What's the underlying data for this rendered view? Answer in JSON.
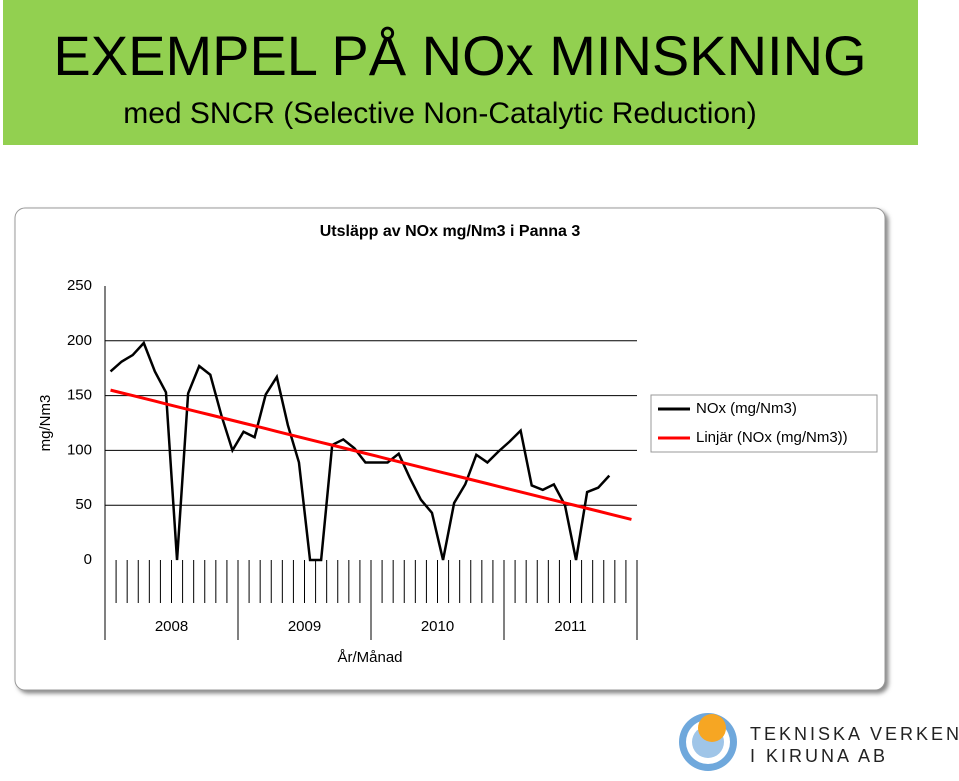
{
  "header": {
    "title": "EXEMPEL PÅ NOx MINSKNING",
    "subtitle": "med SNCR (Selective Non-Catalytic Reduction)"
  },
  "chart_data": {
    "type": "line",
    "title": "Utsläpp av NOx mg/Nm3 i Panna 3",
    "x_label": "År/Månad",
    "y_label": "mg/Nm3",
    "categories": [
      null,
      null,
      null,
      null,
      null,
      null,
      null,
      null,
      null,
      null,
      null,
      null,
      null,
      null,
      null,
      null,
      null,
      null,
      null,
      null,
      null,
      null,
      null,
      null,
      null,
      null,
      null,
      null,
      null,
      null,
      null,
      null,
      null,
      null,
      null,
      null,
      null,
      null,
      null,
      null,
      null,
      null,
      null,
      null,
      null,
      null,
      null,
      null
    ],
    "year_labels": [
      "2008",
      "2009",
      "2010",
      "2011"
    ],
    "series": [
      {
        "name": "NOx (mg/Nm3)",
        "color": "#000000",
        "values": [
          172,
          181,
          187,
          198,
          172,
          153,
          0,
          152,
          177,
          169,
          132,
          100,
          117,
          112,
          151,
          167,
          123,
          89,
          0,
          0,
          105,
          110,
          102,
          89,
          89,
          89,
          97,
          75,
          55,
          43,
          0,
          52,
          69,
          96,
          89,
          99,
          108,
          118,
          68,
          64,
          69,
          50,
          0,
          62,
          66,
          77,
          null,
          null
        ]
      },
      {
        "name": "Linjär (NOx (mg/Nm3))",
        "color": "#ff0000",
        "values": [
          155,
          152.5,
          150,
          147.5,
          145,
          142.4,
          139.9,
          137.4,
          134.9,
          132.4,
          129.9,
          127.4,
          124.9,
          122.4,
          119.9,
          117.3,
          114.8,
          112.3,
          109.8,
          107.3,
          104.8,
          102.3,
          99.8,
          97.3,
          94.8,
          92.2,
          89.7,
          87.2,
          84.7,
          82.2,
          79.7,
          77.2,
          74.7,
          72.2,
          69.7,
          67.1,
          64.6,
          62.1,
          59.6,
          57.1,
          54.6,
          52.1,
          49.6,
          47.1,
          44.6,
          42,
          39.5,
          37
        ]
      }
    ],
    "ylim": [
      0,
      250
    ],
    "yticks": [
      0,
      50,
      100,
      150,
      200,
      250
    ],
    "grid": true,
    "legend": "right"
  },
  "logo": {
    "line1": "TEKNISKA VERKEN",
    "line2": "I KIRUNA AB"
  }
}
